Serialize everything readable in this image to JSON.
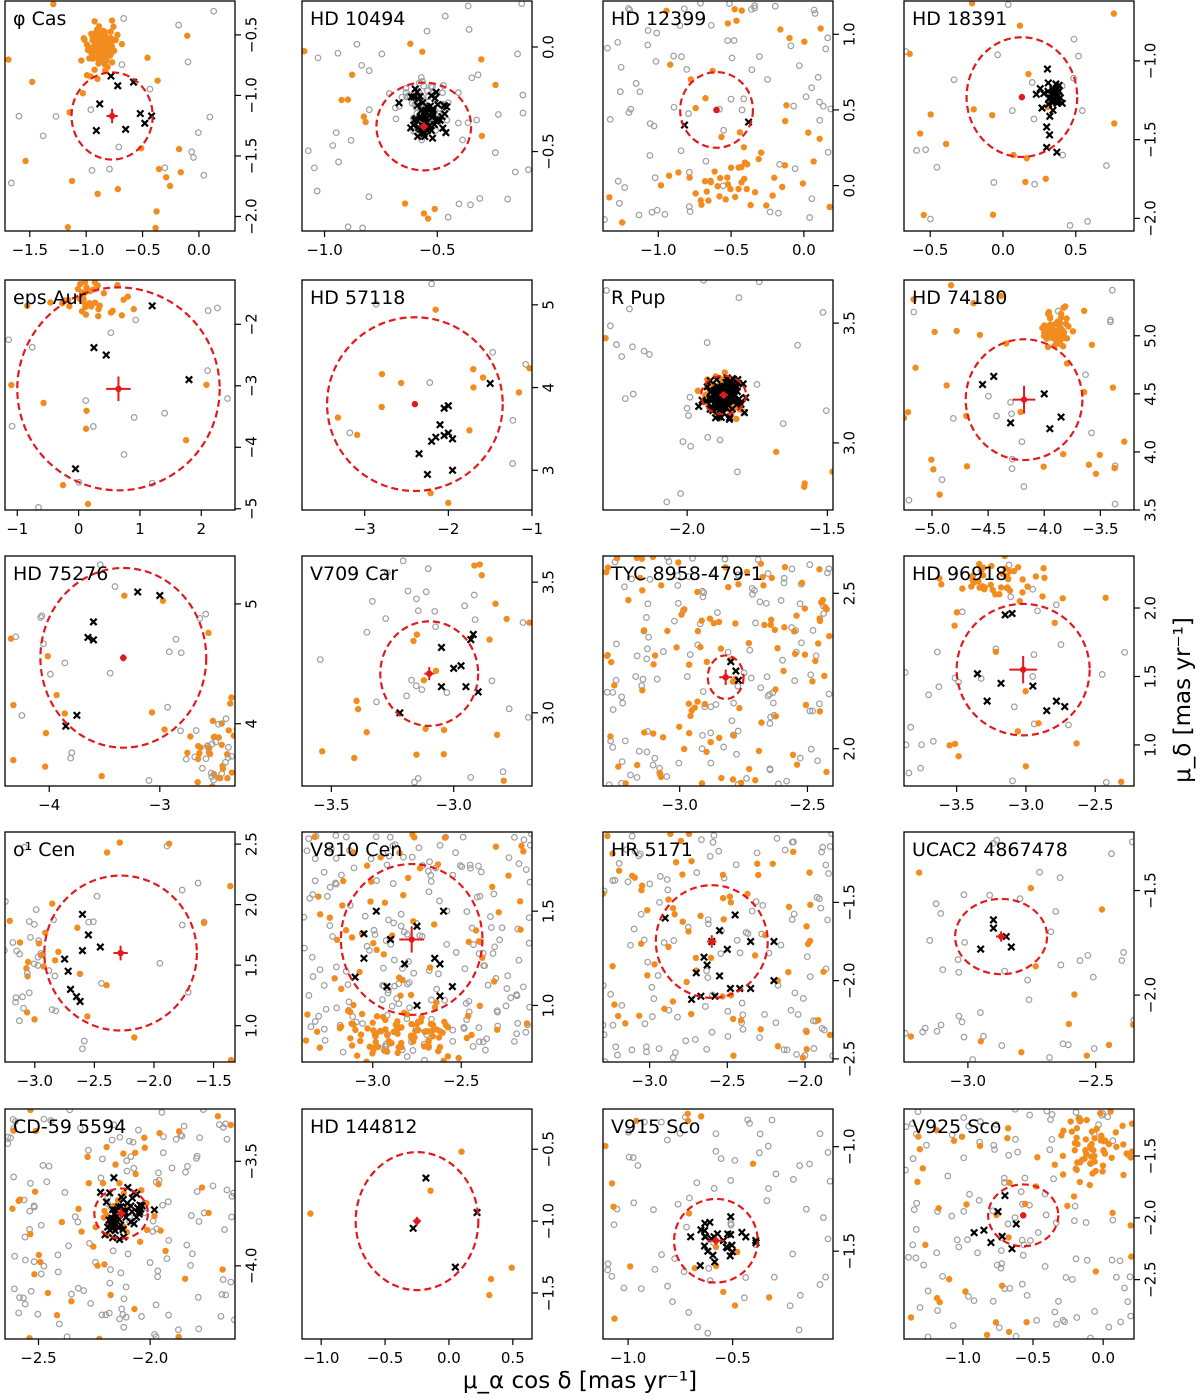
{
  "figure": {
    "xlabel": "μ_α cos δ [mas yr⁻¹]",
    "ylabel": "μ_δ [mas yr⁻¹]"
  },
  "colors": {
    "field_open": "#9e9e9e",
    "field_filled": "#f28c1e",
    "members": "#000000",
    "target": "#e31a1c",
    "circle": "#e31a1c"
  },
  "chart_data": [
    {
      "type": "scatter",
      "title": "φ Cas",
      "xlim": [
        -1.72,
        0.32
      ],
      "ylim": [
        -2.12,
        -0.22
      ],
      "xticks": [
        "-1.5",
        "-1.0",
        "-0.5",
        "0.0"
      ],
      "yticks": [
        "-2.0",
        "-1.5",
        "-1.0",
        "-0.5"
      ],
      "target": {
        "x": -0.77,
        "y": -1.17,
        "ex": 0.05,
        "ey": 0.06
      },
      "circle_radius": 0.36,
      "members": [
        [
          -0.78,
          -0.84
        ],
        [
          -0.72,
          -0.92
        ],
        [
          -0.58,
          -0.89
        ],
        [
          -0.88,
          -1.07
        ],
        [
          -0.52,
          -1.15
        ],
        [
          -0.48,
          -1.23
        ],
        [
          -0.65,
          -1.28
        ],
        [
          -0.91,
          -1.29
        ],
        [
          -0.42,
          -1.17
        ]
      ],
      "clump": {
        "x": -0.85,
        "y": -0.6,
        "sx": 0.06,
        "sy": 0.09,
        "n": 110,
        "color": "filled"
      },
      "n_open": 20,
      "n_filled": 22
    },
    {
      "type": "scatter",
      "title": "HD 10494",
      "xlim": [
        -1.1,
        -0.08
      ],
      "ylim": [
        -0.88,
        0.22
      ],
      "xticks": [
        "-1.0",
        "-0.5"
      ],
      "yticks": [
        "-0.5",
        "0.0"
      ],
      "target": {
        "x": -0.56,
        "y": -0.38,
        "ex": 0.02,
        "ey": 0.02
      },
      "circle_radius": 0.21,
      "clump": {
        "x": -0.56,
        "y": -0.3,
        "sx": 0.06,
        "sy": 0.07,
        "n": 70,
        "color": "open"
      },
      "member_cloud": {
        "x": -0.55,
        "y": -0.32,
        "sx": 0.05,
        "sy": 0.07,
        "n": 60
      },
      "n_open": 40,
      "n_filled": 16
    },
    {
      "type": "scatter",
      "title": "HD 12399",
      "xlim": [
        -1.38,
        0.2
      ],
      "ylim": [
        -0.3,
        1.22
      ],
      "xticks": [
        "-1.0",
        "-0.5",
        "0.0"
      ],
      "yticks": [
        "0.0",
        "0.5",
        "1.0"
      ],
      "target": {
        "x": -0.6,
        "y": 0.5,
        "ex": 0.02,
        "ey": 0.02
      },
      "circle_radius": 0.25,
      "members": [
        [
          -0.82,
          0.4
        ],
        [
          -0.38,
          0.42
        ]
      ],
      "clump": {
        "x": -0.42,
        "y": 0.05,
        "sx": 0.2,
        "sy": 0.12,
        "n": 40,
        "color": "filled"
      },
      "n_open": 80,
      "n_filled": 25
    },
    {
      "type": "scatter",
      "title": "HD 18391",
      "xlim": [
        -0.68,
        0.9
      ],
      "ylim": [
        -2.08,
        -0.62
      ],
      "xticks": [
        "-0.5",
        "0.0",
        "0.5"
      ],
      "yticks": [
        "-2.0",
        "-1.5",
        "-1.0"
      ],
      "target": {
        "x": 0.13,
        "y": -1.23,
        "ex": 0.02,
        "ey": 0.02
      },
      "circle_radius": 0.38,
      "member_cloud": {
        "x": 0.35,
        "y": -1.2,
        "sx": 0.05,
        "sy": 0.07,
        "n": 30
      },
      "members": [
        [
          0.3,
          -1.42
        ],
        [
          0.32,
          -1.47
        ],
        [
          0.3,
          -1.55
        ],
        [
          0.37,
          -1.58
        ]
      ],
      "n_open": 22,
      "n_filled": 18
    },
    {
      "type": "scatter",
      "title": "eps Aur",
      "xlim": [
        -1.2,
        2.55
      ],
      "ylim": [
        -5.02,
        -1.28
      ],
      "xticks": [
        "-1",
        "0",
        "1",
        "2"
      ],
      "yticks": [
        "-5",
        "-4",
        "-3",
        "-2"
      ],
      "target": {
        "x": 0.65,
        "y": -3.05,
        "ex": 0.2,
        "ey": 0.2
      },
      "circle_radius": 1.65,
      "members": [
        [
          0.25,
          -2.38
        ],
        [
          1.2,
          -1.7
        ],
        [
          1.8,
          -2.9
        ],
        [
          -0.05,
          -4.35
        ],
        [
          0.45,
          -2.5
        ]
      ],
      "clump": {
        "x": 0.2,
        "y": -1.55,
        "sx": 0.3,
        "sy": 0.2,
        "n": 40,
        "color": "filled"
      },
      "n_open": 18,
      "n_filled": 10
    },
    {
      "type": "scatter",
      "title": "HD 57118",
      "xlim": [
        -3.75,
        -1.0
      ],
      "ylim": [
        2.52,
        5.3
      ],
      "xticks": [
        "-3",
        "-2",
        "-1"
      ],
      "yticks": [
        "3",
        "4",
        "5"
      ],
      "target": {
        "x": -2.4,
        "y": 3.8,
        "ex": 0.02,
        "ey": 0.02
      },
      "circle_radius": 1.05,
      "members": [
        [
          -1.5,
          4.05
        ],
        [
          -2.0,
          3.78
        ],
        [
          -2.05,
          3.75
        ],
        [
          -2.1,
          3.55
        ],
        [
          -2.0,
          3.45
        ],
        [
          -2.05,
          3.42
        ],
        [
          -2.15,
          3.4
        ],
        [
          -2.2,
          3.35
        ],
        [
          -1.95,
          3.38
        ],
        [
          -2.35,
          3.2
        ],
        [
          -1.95,
          3.0
        ],
        [
          -2.25,
          2.95
        ]
      ],
      "n_open": 8,
      "n_filled": 14
    },
    {
      "type": "scatter",
      "title": "R Pup",
      "xlim": [
        -2.3,
        -1.48
      ],
      "ylim": [
        2.72,
        3.68
      ],
      "xticks": [
        "-2.0",
        "-1.5"
      ],
      "yticks": [
        "3.0",
        "3.5"
      ],
      "target": {
        "x": -1.87,
        "y": 3.2,
        "ex": 0.015,
        "ey": 0.015
      },
      "circle_radius": 0.08,
      "clump": {
        "x": -1.87,
        "y": 3.2,
        "sx": 0.04,
        "sy": 0.04,
        "n": 60,
        "color": "filled"
      },
      "member_cloud": {
        "x": -1.87,
        "y": 3.2,
        "sx": 0.03,
        "sy": 0.035,
        "n": 130
      },
      "n_open": 30,
      "n_filled": 6
    },
    {
      "type": "scatter",
      "title": "HD 74180",
      "xlim": [
        -5.25,
        -3.2
      ],
      "ylim": [
        3.5,
        5.48
      ],
      "xticks": [
        "-5.0",
        "-4.5",
        "-4.0",
        "-3.5"
      ],
      "yticks": [
        "3.5",
        "4.0",
        "4.5",
        "5.0"
      ],
      "target": {
        "x": -4.18,
        "y": 4.45,
        "ex": 0.1,
        "ey": 0.12
      },
      "circle_radius": 0.52,
      "members": [
        [
          -4.55,
          4.58
        ],
        [
          -4.45,
          4.65
        ],
        [
          -4.0,
          4.5
        ],
        [
          -4.3,
          4.25
        ],
        [
          -3.85,
          4.3
        ],
        [
          -3.95,
          4.2
        ]
      ],
      "clump": {
        "x": -3.9,
        "y": 5.05,
        "sx": 0.08,
        "sy": 0.08,
        "n": 55,
        "color": "filled"
      },
      "n_open": 20,
      "n_filled": 30
    },
    {
      "type": "scatter",
      "title": "HD 75276",
      "xlim": [
        -4.4,
        -2.32
      ],
      "ylim": [
        3.48,
        5.4
      ],
      "xticks": [
        "-4",
        "-3"
      ],
      "yticks": [
        "4",
        "5"
      ],
      "target": {
        "x": -3.33,
        "y": 4.55,
        "ex": 0.03,
        "ey": 0.03
      },
      "circle_radius": 0.75,
      "members": [
        [
          -3.2,
          5.1
        ],
        [
          -3.0,
          5.07
        ],
        [
          -3.6,
          4.85
        ],
        [
          -3.65,
          4.72
        ],
        [
          -3.6,
          4.7
        ],
        [
          -3.75,
          4.07
        ],
        [
          -3.85,
          3.98
        ]
      ],
      "clump": {
        "x": -2.5,
        "y": 3.75,
        "sx": 0.15,
        "sy": 0.2,
        "n": 55,
        "color": "mixed"
      },
      "n_open": 20,
      "n_filled": 16
    },
    {
      "type": "scatter",
      "title": "V709 Car",
      "xlim": [
        -3.62,
        -2.68
      ],
      "ylim": [
        2.72,
        3.6
      ],
      "xticks": [
        "-3.5",
        "-3.0"
      ],
      "yticks": [
        "3.0",
        "3.5"
      ],
      "target": {
        "x": -3.1,
        "y": 3.15,
        "ex": 0.02,
        "ey": 0.025
      },
      "circle_radius": 0.2,
      "members": [
        [
          -2.92,
          3.3
        ],
        [
          -2.93,
          3.28
        ],
        [
          -3.05,
          3.25
        ],
        [
          -2.97,
          3.18
        ],
        [
          -3.0,
          3.17
        ],
        [
          -2.95,
          3.1
        ],
        [
          -2.9,
          3.08
        ],
        [
          -3.05,
          3.1
        ],
        [
          -3.22,
          3.0
        ]
      ],
      "n_open": 30,
      "n_filled": 22
    },
    {
      "type": "scatter",
      "title": "TYC 8958-479-1",
      "xlim": [
        -3.3,
        -2.4
      ],
      "ylim": [
        1.88,
        2.62
      ],
      "xticks": [
        "-3.0",
        "-2.5"
      ],
      "yticks": [
        "2.0",
        "2.5"
      ],
      "target": {
        "x": -2.82,
        "y": 2.23,
        "ex": 0.025,
        "ey": 0.025
      },
      "circle_radius": 0.07,
      "members": [
        [
          -2.8,
          2.28
        ],
        [
          -2.78,
          2.25
        ],
        [
          -2.77,
          2.22
        ]
      ],
      "n_open": 130,
      "n_filled": 110
    },
    {
      "type": "scatter",
      "title": "HD 96918",
      "xlim": [
        -3.88,
        -2.22
      ],
      "ylim": [
        0.7,
        2.38
      ],
      "xticks": [
        "-3.5",
        "-3.0",
        "-2.5"
      ],
      "yticks": [
        "1.0",
        "1.5",
        "2.0"
      ],
      "target": {
        "x": -3.02,
        "y": 1.55,
        "ex": 0.1,
        "ey": 0.1
      },
      "circle_radius": 0.48,
      "members": [
        [
          -3.15,
          1.95
        ],
        [
          -3.1,
          1.96
        ],
        [
          -3.35,
          1.52
        ],
        [
          -3.18,
          1.45
        ],
        [
          -2.95,
          1.43
        ],
        [
          -3.28,
          1.32
        ],
        [
          -2.85,
          1.25
        ],
        [
          -2.78,
          1.32
        ],
        [
          -2.72,
          1.28
        ]
      ],
      "clump": {
        "x": -3.2,
        "y": 2.2,
        "sx": 0.25,
        "sy": 0.1,
        "n": 40,
        "color": "filled"
      },
      "n_open": 30,
      "n_filled": 18
    },
    {
      "type": "scatter",
      "title": "o¹ Cen",
      "xlim": [
        -3.25,
        -1.32
      ],
      "ylim": [
        0.7,
        2.6
      ],
      "xticks": [
        "-3.0",
        "-2.5",
        "-2.0",
        "-1.5"
      ],
      "yticks": [
        "1.0",
        "1.5",
        "2.0",
        "2.5"
      ],
      "target": {
        "x": -2.28,
        "y": 1.6,
        "ex": 0.06,
        "ey": 0.06
      },
      "circle_radius": 0.64,
      "members": [
        [
          -2.6,
          1.92
        ],
        [
          -2.55,
          1.75
        ],
        [
          -2.6,
          1.62
        ],
        [
          -2.45,
          1.65
        ],
        [
          -2.75,
          1.55
        ],
        [
          -2.72,
          1.45
        ],
        [
          -2.7,
          1.3
        ],
        [
          -2.65,
          1.24
        ],
        [
          -2.62,
          1.2
        ]
      ],
      "clump": {
        "x": -3.05,
        "y": 1.6,
        "sx": 0.15,
        "sy": 0.3,
        "n": 45,
        "color": "mixed"
      },
      "n_open": 15,
      "n_filled": 10
    },
    {
      "type": "scatter",
      "title": "V810 Cen",
      "xlim": [
        -3.4,
        -2.1
      ],
      "ylim": [
        0.7,
        1.92
      ],
      "xticks": [
        "-3.0",
        "-2.5"
      ],
      "yticks": [
        "1.0",
        "1.5"
      ],
      "target": {
        "x": -2.78,
        "y": 1.35,
        "ex": 0.07,
        "ey": 0.07
      },
      "circle_radius": 0.4,
      "members": [
        [
          -2.98,
          1.5
        ],
        [
          -2.6,
          1.5
        ],
        [
          -3.05,
          1.38
        ],
        [
          -2.9,
          1.35
        ],
        [
          -2.75,
          1.42
        ],
        [
          -3.05,
          1.25
        ],
        [
          -2.65,
          1.25
        ],
        [
          -2.82,
          1.22
        ],
        [
          -3.1,
          1.15
        ],
        [
          -2.92,
          1.1
        ],
        [
          -2.55,
          1.1
        ],
        [
          -2.62,
          1.05
        ],
        [
          -2.75,
          1.0
        ],
        [
          -2.62,
          1.22
        ]
      ],
      "clump": {
        "x": -2.8,
        "y": 0.85,
        "sx": 0.2,
        "sy": 0.08,
        "n": 80,
        "color": "filled"
      },
      "n_open": 200,
      "n_filled": 70
    },
    {
      "type": "scatter",
      "title": "HR 5171",
      "xlim": [
        -3.3,
        -1.82
      ],
      "ylim": [
        -2.52,
        -1.05
      ],
      "xticks": [
        "-3.0",
        "-2.5",
        "-2.0"
      ],
      "yticks": [
        "-2.5",
        "-2.0",
        "-1.5"
      ],
      "target": {
        "x": -2.6,
        "y": -1.75,
        "ex": 0.03,
        "ey": 0.04
      },
      "circle_radius": 0.36,
      "members": [
        [
          -2.9,
          -1.6
        ],
        [
          -2.45,
          -1.58
        ],
        [
          -2.55,
          -1.68
        ],
        [
          -2.6,
          -1.75
        ],
        [
          -2.35,
          -1.75
        ],
        [
          -2.2,
          -1.75
        ],
        [
          -2.5,
          -1.8
        ],
        [
          -2.65,
          -1.85
        ],
        [
          -2.63,
          -1.9
        ],
        [
          -2.7,
          -1.95
        ],
        [
          -2.55,
          -1.97
        ],
        [
          -2.48,
          -2.05
        ],
        [
          -2.42,
          -2.05
        ],
        [
          -2.35,
          -2.05
        ],
        [
          -2.58,
          -2.1
        ],
        [
          -2.67,
          -2.1
        ],
        [
          -2.73,
          -2.12
        ],
        [
          -2.2,
          -2.0
        ]
      ],
      "n_open": 120,
      "n_filled": 70
    },
    {
      "type": "scatter",
      "title": "UCAC2 4867478",
      "xlim": [
        -3.25,
        -2.35
      ],
      "ylim": [
        -2.32,
        -1.22
      ],
      "xticks": [
        "-3.0",
        "-2.5"
      ],
      "yticks": [
        "-2.0",
        "-1.5"
      ],
      "target": {
        "x": -2.87,
        "y": -1.72,
        "ex": 0.02,
        "ey": 0.025
      },
      "circle_radius": 0.18,
      "members": [
        [
          -2.9,
          -1.64
        ],
        [
          -2.9,
          -1.68
        ],
        [
          -2.85,
          -1.72
        ],
        [
          -2.83,
          -1.77
        ],
        [
          -2.95,
          -1.78
        ]
      ],
      "n_open": 45,
      "n_filled": 12
    },
    {
      "type": "scatter",
      "title": "CD-59 5594",
      "xlim": [
        -2.65,
        -1.62
      ],
      "ylim": [
        -4.35,
        -3.25
      ],
      "xticks": [
        "-2.5",
        "-2.0"
      ],
      "yticks": [
        "-4.0",
        "-3.5"
      ],
      "target": {
        "x": -2.13,
        "y": -3.75,
        "ex": 0.02,
        "ey": 0.025
      },
      "circle_radius": 0.12,
      "clump": {
        "x": -2.13,
        "y": -3.75,
        "sx": 0.08,
        "sy": 0.12,
        "n": 30,
        "color": "filled"
      },
      "member_cloud": {
        "x": -2.12,
        "y": -3.76,
        "sx": 0.05,
        "sy": 0.06,
        "n": 55
      },
      "n_open": 140,
      "n_filled": 40
    },
    {
      "type": "scatter",
      "title": "HD 144812",
      "xlim": [
        -1.15,
        0.65
      ],
      "ylim": [
        -1.82,
        -0.22
      ],
      "xticks": [
        "-1.0",
        "-0.5",
        "0.0",
        "0.5"
      ],
      "yticks": [
        "-1.5",
        "-1.0",
        "-0.5"
      ],
      "target": {
        "x": -0.25,
        "y": -1.0,
        "ex": 0.03,
        "ey": 0.03
      },
      "circle_radius": 0.48,
      "members": [
        [
          -0.28,
          -1.05
        ],
        [
          -0.18,
          -0.7
        ],
        [
          0.22,
          -0.94
        ],
        [
          0.05,
          -1.32
        ]
      ],
      "n_open": 0,
      "n_filled": 6
    },
    {
      "type": "scatter",
      "title": "V915 Sco",
      "xlim": [
        -1.12,
        -0.02
      ],
      "ylim": [
        -1.92,
        -0.82
      ],
      "xticks": [
        "-1.0",
        "-0.5"
      ],
      "yticks": [
        "-1.5",
        "-1.0"
      ],
      "target": {
        "x": -0.58,
        "y": -1.45,
        "ex": 0.04,
        "ey": 0.02
      },
      "circle_radius": 0.2,
      "member_cloud": {
        "x": -0.55,
        "y": -1.45,
        "sx": 0.07,
        "sy": 0.06,
        "n": 28
      },
      "n_open": 70,
      "n_filled": 18
    },
    {
      "type": "scatter",
      "title": "V925 Sco",
      "xlim": [
        -1.42,
        0.22
      ],
      "ylim": [
        -2.98,
        -1.12
      ],
      "xticks": [
        "-1.0",
        "-0.5",
        "0.0"
      ],
      "yticks": [
        "-2.5",
        "-2.0",
        "-1.5"
      ],
      "target": {
        "x": -0.57,
        "y": -1.98,
        "ex": 0.02,
        "ey": 0.02
      },
      "circle_radius": 0.25,
      "members": [
        [
          -0.7,
          -1.82
        ],
        [
          -0.75,
          -1.95
        ],
        [
          -0.85,
          -2.1
        ],
        [
          -0.8,
          -2.2
        ],
        [
          -0.72,
          -2.15
        ],
        [
          -0.65,
          -2.25
        ],
        [
          -0.92,
          -2.12
        ],
        [
          -0.62,
          -2.05
        ]
      ],
      "clump": {
        "x": -0.05,
        "y": -1.45,
        "sx": 0.15,
        "sy": 0.15,
        "n": 60,
        "color": "filled"
      },
      "n_open": 120,
      "n_filled": 40
    }
  ]
}
